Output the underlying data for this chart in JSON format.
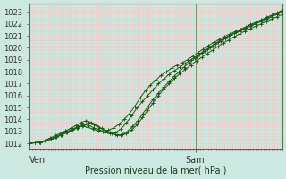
{
  "background_color": "#cce8e0",
  "plot_bg_color": "#cce8e0",
  "grid_color_major": "#f0c8c8",
  "grid_color_minor": "#f0c8c8",
  "line_color": "#1a5c1a",
  "marker_color": "#1a5c1a",
  "xlabel": "Pression niveau de la mer( hPa )",
  "ylabel": "",
  "ylim": [
    1011.5,
    1023.7
  ],
  "xlim": [
    0,
    96
  ],
  "yticks": [
    1012,
    1013,
    1014,
    1015,
    1016,
    1017,
    1018,
    1019,
    1020,
    1021,
    1022,
    1023
  ],
  "xtick_positions": [
    3,
    63
  ],
  "xtick_labels": [
    "Ven",
    "Sam"
  ],
  "vline_x": 63,
  "series": [
    [
      1012.0,
      1012.05,
      1012.1,
      1012.2,
      1012.35,
      1012.5,
      1012.7,
      1012.9,
      1013.1,
      1013.3,
      1013.45,
      1013.35,
      1013.2,
      1013.05,
      1012.95,
      1013.1,
      1013.3,
      1013.6,
      1014.0,
      1014.5,
      1015.1,
      1015.8,
      1016.4,
      1016.9,
      1017.3,
      1017.7,
      1018.0,
      1018.3,
      1018.55,
      1018.75,
      1019.0,
      1019.3,
      1019.6,
      1019.9,
      1020.2,
      1020.45,
      1020.7,
      1020.95,
      1021.15,
      1021.35,
      1021.55,
      1021.75,
      1021.95,
      1022.15,
      1022.35,
      1022.55,
      1022.75,
      1022.95,
      1023.15
    ],
    [
      1012.0,
      1012.05,
      1012.1,
      1012.2,
      1012.4,
      1012.6,
      1012.8,
      1013.0,
      1013.2,
      1013.4,
      1013.6,
      1013.5,
      1013.3,
      1013.1,
      1012.9,
      1012.85,
      1012.9,
      1013.2,
      1013.7,
      1014.3,
      1015.0,
      1015.5,
      1016.0,
      1016.5,
      1017.0,
      1017.4,
      1017.8,
      1018.1,
      1018.4,
      1018.7,
      1019.0,
      1019.3,
      1019.6,
      1019.9,
      1020.2,
      1020.5,
      1020.75,
      1021.0,
      1021.2,
      1021.4,
      1021.6,
      1021.8,
      1022.0,
      1022.2,
      1022.4,
      1022.6,
      1022.8,
      1023.0
    ],
    [
      1012.0,
      1012.05,
      1012.1,
      1012.2,
      1012.35,
      1012.5,
      1012.7,
      1012.9,
      1013.1,
      1013.3,
      1013.5,
      1013.7,
      1013.55,
      1013.3,
      1013.1,
      1012.9,
      1012.75,
      1012.7,
      1012.8,
      1013.1,
      1013.55,
      1014.15,
      1014.8,
      1015.4,
      1016.0,
      1016.55,
      1017.0,
      1017.45,
      1017.85,
      1018.2,
      1018.55,
      1018.9,
      1019.2,
      1019.5,
      1019.8,
      1020.1,
      1020.4,
      1020.65,
      1020.9,
      1021.15,
      1021.4,
      1021.6,
      1021.8,
      1022.0,
      1022.2,
      1022.4,
      1022.6,
      1022.8
    ],
    [
      1012.0,
      1012.05,
      1012.1,
      1012.25,
      1012.45,
      1012.65,
      1012.85,
      1013.05,
      1013.25,
      1013.5,
      1013.75,
      1013.9,
      1013.75,
      1013.5,
      1013.25,
      1013.0,
      1012.8,
      1012.7,
      1012.75,
      1013.0,
      1013.4,
      1013.9,
      1014.5,
      1015.1,
      1015.7,
      1016.2,
      1016.7,
      1017.15,
      1017.6,
      1018.0,
      1018.4,
      1018.75,
      1019.1,
      1019.4,
      1019.7,
      1020.0,
      1020.3,
      1020.55,
      1020.8,
      1021.05,
      1021.3,
      1021.5,
      1021.7,
      1021.9,
      1022.1,
      1022.3,
      1022.5,
      1022.7,
      1022.9,
      1023.1
    ]
  ]
}
